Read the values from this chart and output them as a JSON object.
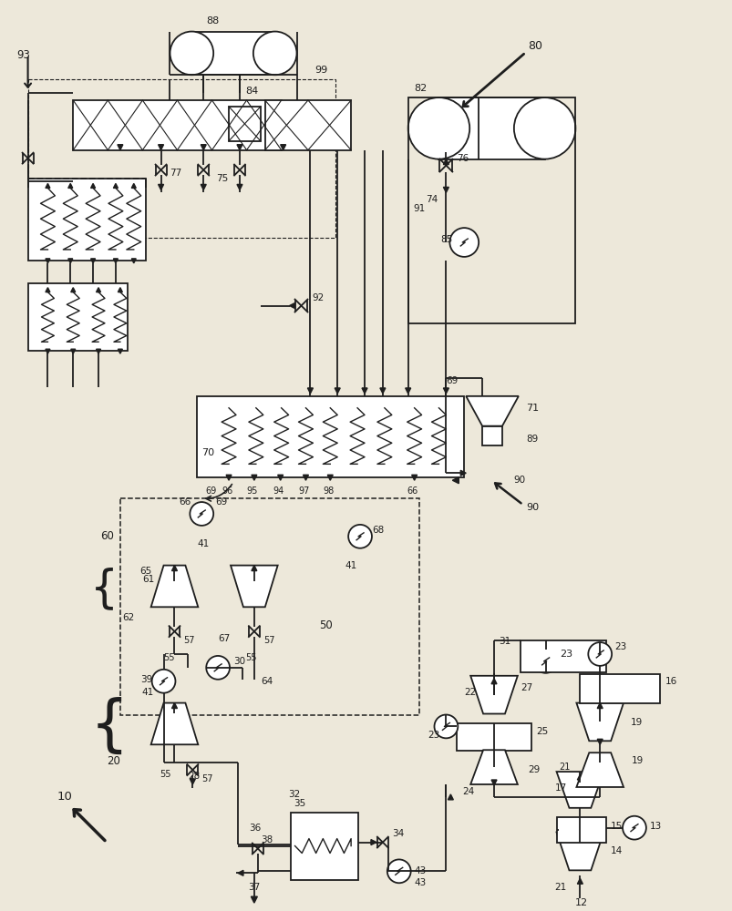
{
  "bg_color": "#ede8da",
  "lc": "#1e1e1e",
  "fig_w": 8.04,
  "fig_h": 10.0,
  "dpi": 100
}
